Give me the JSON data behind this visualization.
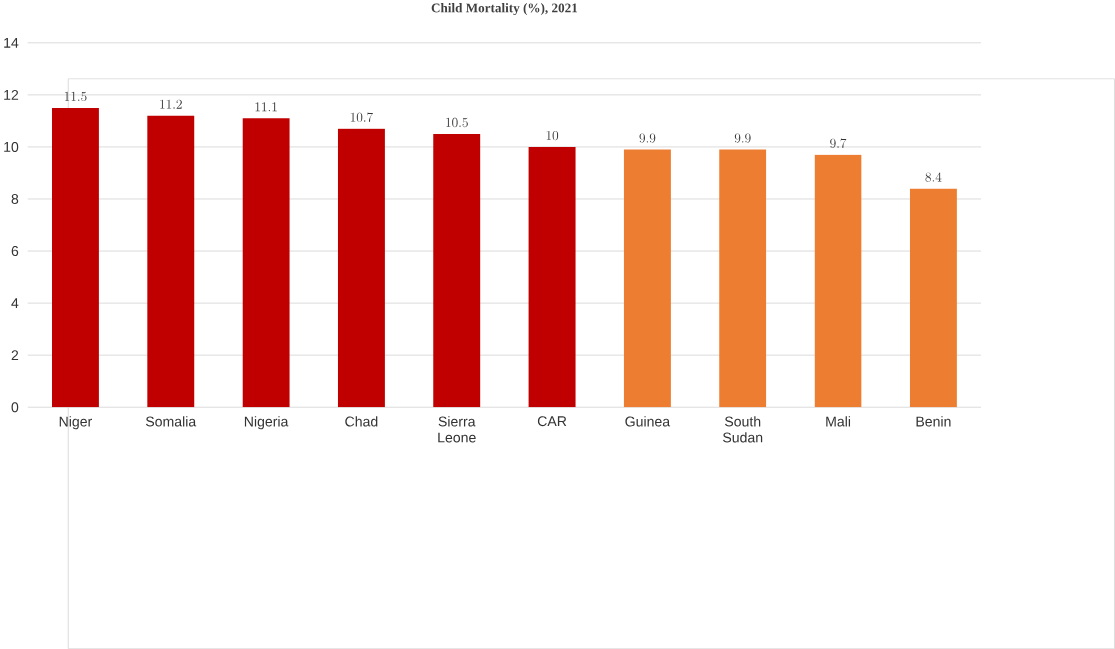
{
  "chart_data": {
    "type": "bar",
    "title": "Child Mortality (%), 2021",
    "categories": [
      "Niger",
      "Somalia",
      "Nigeria",
      "Chad",
      "Sierra Leone",
      "CAR",
      "Guinea",
      "South Sudan",
      "Mali",
      "Benin"
    ],
    "values": [
      11.5,
      11.2,
      11.1,
      10.7,
      10.5,
      10,
      9.9,
      9.9,
      9.7,
      8.4
    ],
    "colors": [
      "#c00000",
      "#c00000",
      "#c00000",
      "#c00000",
      "#c00000",
      "#c00000",
      "#ed7d31",
      "#ed7d31",
      "#ed7d31",
      "#ed7d31"
    ],
    "ylim": [
      0,
      14
    ],
    "yticks": [
      0,
      2,
      4,
      6,
      8,
      10,
      12,
      14
    ],
    "grid": "y",
    "data_labels": true
  }
}
